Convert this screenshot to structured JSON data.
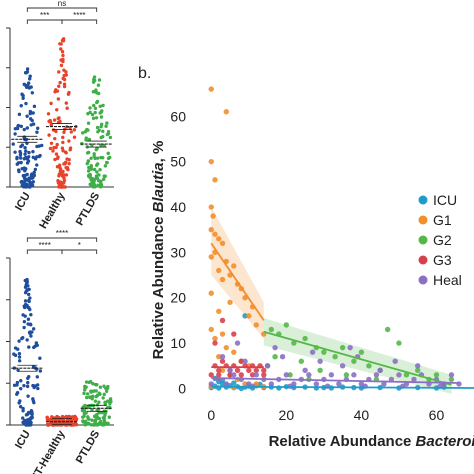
{
  "figure": {
    "panel_b_label": "b."
  },
  "chart_data": [
    {
      "panel": "a-top",
      "type": "scatter",
      "categories": [
        "ICU",
        "Healthy",
        "PTLDS"
      ],
      "colors": {
        "ICU": "#1f4e9c",
        "Healthy": "#e8432a",
        "PTLDS": "#3fae49"
      },
      "comparisons": [
        {
          "from": "ICU",
          "to": "Healthy",
          "label": "***"
        },
        {
          "from": "Healthy",
          "to": "PTLDS",
          "label": "****"
        },
        {
          "from": "ICU",
          "to": "PTLDS",
          "label": "ns"
        }
      ],
      "ylim": [
        0,
        1
      ],
      "medians": [
        0.3,
        0.38,
        0.27
      ]
    },
    {
      "panel": "a-bottom",
      "type": "scatter",
      "categories": [
        "ICU",
        "IT-Healthy",
        "PTLDS"
      ],
      "colors": {
        "ICU": "#1f4e9c",
        "IT-Healthy": "#e8432a",
        "PTLDS": "#3fae49"
      },
      "comparisons": [
        {
          "from": "ICU",
          "to": "IT-Healthy",
          "label": "****"
        },
        {
          "from": "IT-Healthy",
          "to": "PTLDS",
          "label": "*"
        },
        {
          "from": "ICU",
          "to": "PTLDS",
          "label": "****"
        }
      ],
      "ylim": [
        0,
        1
      ],
      "medians": [
        0.34,
        0.02,
        0.1
      ]
    },
    {
      "panel": "b",
      "type": "scatter",
      "xlabel_prefix": "Relative Abundance ",
      "xlabel_italic": "Bacteroides",
      "ylabel_prefix": "Relative Abundance ",
      "ylabel_italic": "Blautia",
      "ylabel_suffix": ", %",
      "xlim": [
        -3,
        70
      ],
      "ylim": [
        -1,
        68
      ],
      "xticks": [
        0,
        20,
        40,
        60
      ],
      "yticks": [
        0,
        10,
        20,
        30,
        40,
        50,
        60
      ],
      "legend_position": "right",
      "series": [
        {
          "name": "ICU",
          "color": "#1f9bc9",
          "points": [
            [
              0,
              0.2
            ],
            [
              1,
              0.5
            ],
            [
              2,
              0.1
            ],
            [
              3,
              1
            ],
            [
              4,
              0.3
            ],
            [
              5,
              0.6
            ],
            [
              6,
              0.2
            ],
            [
              7,
              0.4
            ],
            [
              8,
              0
            ],
            [
              9,
              0.3
            ],
            [
              10,
              0.5
            ],
            [
              11,
              0.1
            ],
            [
              12,
              0.6
            ],
            [
              14,
              0.2
            ],
            [
              16,
              0.3
            ],
            [
              18,
              0.1
            ],
            [
              20,
              0.4
            ],
            [
              22,
              0.2
            ],
            [
              25,
              0.3
            ],
            [
              28,
              0.1
            ],
            [
              30,
              0.2
            ],
            [
              32,
              0.1
            ],
            [
              35,
              0.3
            ],
            [
              38,
              0.2
            ],
            [
              40,
              0.1
            ],
            [
              45,
              0.2
            ],
            [
              50,
              0.1
            ],
            [
              55,
              0.2
            ],
            [
              60,
              0.1
            ],
            [
              62,
              0.3
            ],
            [
              2,
              1.5
            ],
            [
              6,
              1.2
            ],
            [
              9,
              16
            ],
            [
              3,
              1.8
            ],
            [
              1,
              2.2
            ],
            [
              4,
              0.8
            ],
            [
              13,
              0.9
            ]
          ],
          "trend": [
            [
              0,
              0.4
            ],
            [
              75,
              0.1
            ]
          ]
        },
        {
          "name": "G1",
          "color": "#f28e2b",
          "points": [
            [
              0,
              66
            ],
            [
              0,
              50
            ],
            [
              4,
              61
            ],
            [
              1,
              46
            ],
            [
              0,
              40
            ],
            [
              0.5,
              38
            ],
            [
              0,
              35
            ],
            [
              1,
              34
            ],
            [
              2,
              33
            ],
            [
              3,
              32
            ],
            [
              1,
              30
            ],
            [
              0,
              29
            ],
            [
              4,
              28
            ],
            [
              6,
              27
            ],
            [
              2,
              26
            ],
            [
              5,
              25
            ],
            [
              3,
              24
            ],
            [
              7,
              23
            ],
            [
              8,
              22
            ],
            [
              0,
              21
            ],
            [
              9,
              20
            ],
            [
              5,
              19
            ],
            [
              11,
              18
            ],
            [
              2,
              17
            ],
            [
              10,
              16
            ],
            [
              12,
              14
            ],
            [
              0,
              13
            ],
            [
              3,
              12
            ],
            [
              14,
              12
            ],
            [
              1,
              11
            ],
            [
              4,
              9
            ],
            [
              6,
              8
            ],
            [
              2,
              7
            ],
            [
              8,
              6
            ],
            [
              10,
              5
            ],
            [
              3,
              4
            ],
            [
              5,
              3
            ],
            [
              7,
              2
            ],
            [
              9,
              1
            ],
            [
              12,
              1
            ],
            [
              0,
              0.5
            ],
            [
              14,
              0.4
            ],
            [
              6,
              0.2
            ]
          ],
          "trend": [
            [
              0,
              32
            ],
            [
              14,
              15
            ]
          ]
        },
        {
          "name": "G2",
          "color": "#54b848",
          "points": [
            [
              16,
              13
            ],
            [
              18,
              12
            ],
            [
              20,
              14
            ],
            [
              22,
              10
            ],
            [
              25,
              11
            ],
            [
              28,
              9
            ],
            [
              30,
              8
            ],
            [
              33,
              7
            ],
            [
              35,
              9
            ],
            [
              38,
              6
            ],
            [
              40,
              8
            ],
            [
              42,
              5
            ],
            [
              45,
              4
            ],
            [
              47,
              13
            ],
            [
              50,
              10
            ],
            [
              52,
              3
            ],
            [
              55,
              4
            ],
            [
              58,
              2
            ],
            [
              60,
              3
            ],
            [
              62,
              1
            ],
            [
              64,
              2
            ],
            [
              17,
              7
            ],
            [
              24,
              6
            ],
            [
              29,
              4
            ],
            [
              36,
              3
            ],
            [
              44,
              2
            ],
            [
              15,
              5
            ],
            [
              21,
              3
            ],
            [
              26,
              2
            ]
          ],
          "trend": [
            [
              14,
              12.5
            ],
            [
              64,
              0.8
            ]
          ]
        },
        {
          "name": "G3",
          "color": "#d93f4a",
          "points": [
            [
              1,
              5
            ],
            [
              2,
              4
            ],
            [
              3,
              6
            ],
            [
              4,
              5
            ],
            [
              5,
              4
            ],
            [
              6,
              5
            ],
            [
              7,
              4
            ],
            [
              8,
              6
            ],
            [
              9,
              5
            ],
            [
              10,
              4
            ],
            [
              11,
              5
            ],
            [
              12,
              4
            ],
            [
              13,
              5
            ],
            [
              14,
              4
            ],
            [
              0,
              3
            ],
            [
              2,
              3
            ],
            [
              5,
              3
            ],
            [
              8,
              3
            ],
            [
              11,
              3
            ],
            [
              14,
              3
            ],
            [
              3,
              15
            ],
            [
              1,
              10
            ],
            [
              6,
              12
            ]
          ],
          "trend": [
            [
              0,
              4.7
            ],
            [
              14,
              4.7
            ]
          ]
        },
        {
          "name": "Heal",
          "color": "#8b6fc4",
          "points": [
            [
              0,
              1
            ],
            [
              2,
              2
            ],
            [
              4,
              1
            ],
            [
              6,
              3
            ],
            [
              8,
              2
            ],
            [
              10,
              1
            ],
            [
              12,
              3
            ],
            [
              14,
              2
            ],
            [
              16,
              1
            ],
            [
              18,
              2
            ],
            [
              20,
              3
            ],
            [
              22,
              1
            ],
            [
              24,
              2
            ],
            [
              26,
              3
            ],
            [
              28,
              1
            ],
            [
              30,
              2
            ],
            [
              32,
              3
            ],
            [
              34,
              1
            ],
            [
              36,
              2
            ],
            [
              38,
              3
            ],
            [
              40,
              1
            ],
            [
              42,
              2
            ],
            [
              44,
              3
            ],
            [
              46,
              1
            ],
            [
              48,
              2
            ],
            [
              50,
              3
            ],
            [
              52,
              1
            ],
            [
              54,
              2
            ],
            [
              56,
              3
            ],
            [
              58,
              1
            ],
            [
              60,
              2
            ],
            [
              62,
              1
            ],
            [
              64,
              3
            ],
            [
              66,
              1
            ],
            [
              5,
              4
            ],
            [
              15,
              5
            ],
            [
              25,
              4
            ],
            [
              35,
              5
            ],
            [
              45,
              4
            ],
            [
              55,
              5
            ],
            [
              3,
              7
            ],
            [
              9,
              6
            ],
            [
              19,
              7
            ],
            [
              29,
              6
            ],
            [
              39,
              7
            ],
            [
              49,
              6
            ],
            [
              11,
              0.5
            ],
            [
              21,
              0.5
            ],
            [
              31,
              0.5
            ],
            [
              41,
              0.5
            ],
            [
              51,
              0.5
            ],
            [
              61,
              0.5
            ],
            [
              7,
              10
            ],
            [
              17,
              9
            ],
            [
              27,
              8
            ],
            [
              37,
              9
            ]
          ],
          "trend": [
            [
              0,
              2.3
            ],
            [
              66,
              1.2
            ]
          ]
        }
      ]
    }
  ]
}
